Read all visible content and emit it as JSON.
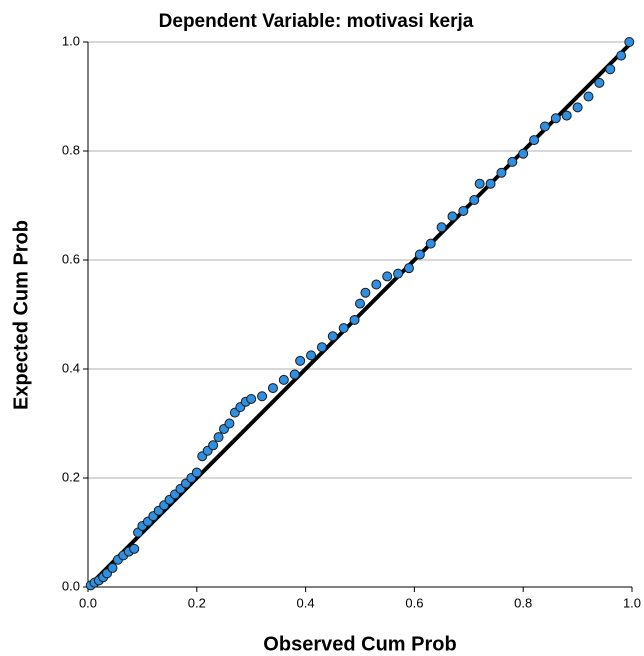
{
  "chart_data": {
    "type": "scatter",
    "title": "Dependent Variable: motivasi kerja",
    "x_label": "Observed Cum Prob",
    "y_label": "Expected Cum Prob",
    "color": "#2f8fe0",
    "reference_line": true,
    "grid": true,
    "xlim": [
      0,
      1
    ],
    "ylim": [
      0,
      1
    ],
    "xticks": [
      {
        "value": 0,
        "label": "0.0"
      },
      {
        "value": 0.2,
        "label": "0.2"
      },
      {
        "value": 0.4,
        "label": "0.4"
      },
      {
        "value": 0.6,
        "label": "0.6"
      },
      {
        "value": 0.8,
        "label": "0.8"
      },
      {
        "value": 1,
        "label": "1.0"
      }
    ],
    "yticks": [
      {
        "value": 0,
        "label": "0.0"
      },
      {
        "value": 0.2,
        "label": "0.2"
      },
      {
        "value": 0.4,
        "label": "0.4"
      },
      {
        "value": 0.6,
        "label": "0.6"
      },
      {
        "value": 0.8,
        "label": "0.8"
      },
      {
        "value": 1,
        "label": "1.0"
      }
    ],
    "x": [
      0.005,
      0.012,
      0.02,
      0.028,
      0.035,
      0.045,
      0.055,
      0.065,
      0.075,
      0.085,
      0.092,
      0.1,
      0.11,
      0.12,
      0.13,
      0.14,
      0.15,
      0.16,
      0.17,
      0.18,
      0.19,
      0.2,
      0.21,
      0.22,
      0.23,
      0.24,
      0.25,
      0.26,
      0.27,
      0.28,
      0.29,
      0.3,
      0.32,
      0.34,
      0.36,
      0.38,
      0.39,
      0.41,
      0.43,
      0.45,
      0.47,
      0.49,
      0.5,
      0.51,
      0.53,
      0.55,
      0.57,
      0.59,
      0.61,
      0.63,
      0.65,
      0.67,
      0.69,
      0.71,
      0.72,
      0.74,
      0.76,
      0.78,
      0.8,
      0.82,
      0.84,
      0.86,
      0.88,
      0.9,
      0.92,
      0.94,
      0.96,
      0.98,
      0.995
    ],
    "values": [
      0.003,
      0.008,
      0.012,
      0.018,
      0.025,
      0.035,
      0.05,
      0.058,
      0.065,
      0.07,
      0.1,
      0.112,
      0.12,
      0.13,
      0.14,
      0.15,
      0.16,
      0.17,
      0.18,
      0.19,
      0.2,
      0.21,
      0.24,
      0.25,
      0.26,
      0.275,
      0.29,
      0.3,
      0.32,
      0.33,
      0.34,
      0.345,
      0.35,
      0.365,
      0.38,
      0.39,
      0.415,
      0.425,
      0.44,
      0.46,
      0.475,
      0.49,
      0.52,
      0.54,
      0.555,
      0.57,
      0.575,
      0.585,
      0.61,
      0.63,
      0.66,
      0.68,
      0.69,
      0.71,
      0.74,
      0.74,
      0.76,
      0.78,
      0.795,
      0.82,
      0.845,
      0.86,
      0.865,
      0.88,
      0.9,
      0.925,
      0.95,
      0.975,
      1.0
    ]
  }
}
